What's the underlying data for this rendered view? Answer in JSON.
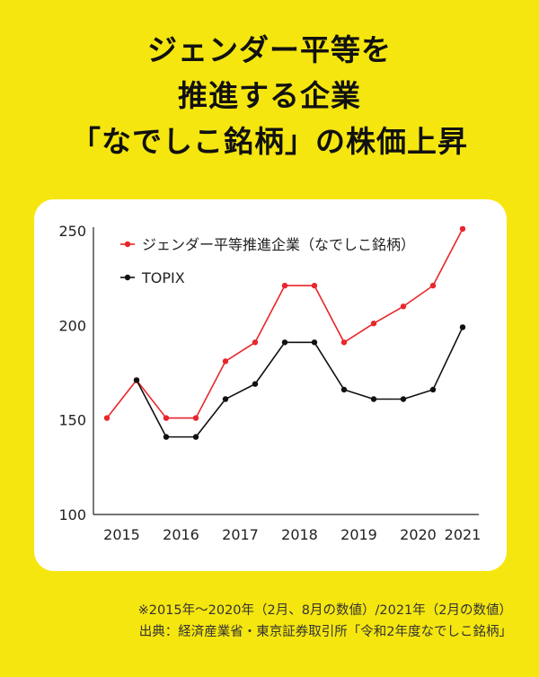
{
  "title_lines": [
    "ジェンダー平等を",
    "推進する企業",
    "「なでしこ銘柄」の株価上昇"
  ],
  "notes": [
    "※2015年〜2020年（2月、8月の数値）/2021年（2月の数値）",
    "出典：経済産業省・東京証券取引所「令和2年度なでしこ銘柄」"
  ],
  "colors": {
    "background": "#f5e60f",
    "card": "#ffffff",
    "series_1": "#e8262b",
    "series_2": "#111111"
  },
  "chart_data": {
    "type": "line",
    "title": "",
    "xlabel": "",
    "ylabel": "",
    "ylim": [
      100,
      250
    ],
    "yticks": [
      100,
      150,
      200,
      250
    ],
    "x_labels": [
      "2015",
      "2016",
      "2017",
      "2018",
      "2019",
      "2020",
      "2021"
    ],
    "x": [
      "2015-02",
      "2015-08",
      "2016-02",
      "2016-08",
      "2017-02",
      "2017-08",
      "2018-02",
      "2018-08",
      "2019-02",
      "2019-08",
      "2020-02",
      "2020-08",
      "2021-02"
    ],
    "legend_position": "top-left",
    "grid": false,
    "series": [
      {
        "name": "ジェンダー平等推進企業（なでしこ銘柄）",
        "color": "#e8262b",
        "values": [
          151,
          171,
          151,
          151,
          181,
          191,
          221,
          221,
          191,
          201,
          210,
          221,
          251
        ]
      },
      {
        "name": "TOPIX",
        "color": "#111111",
        "values": [
          null,
          171,
          141,
          141,
          161,
          169,
          191,
          191,
          166,
          161,
          161,
          166,
          199
        ]
      }
    ]
  }
}
